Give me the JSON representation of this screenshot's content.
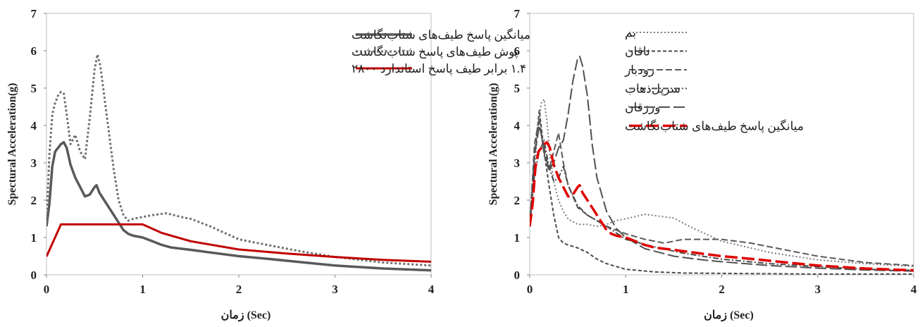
{
  "chart_data": [
    {
      "type": "line",
      "xlabel": "زمان (Sec)",
      "ylabel": "Spectural Acceleration(g)",
      "xlim": [
        0,
        4
      ],
      "ylim": [
        0,
        7
      ],
      "xticks": [
        0,
        1,
        2,
        3,
        4
      ],
      "yticks": [
        0,
        1,
        2,
        3,
        4,
        5,
        6,
        7
      ],
      "legend_position": "top-right",
      "series": [
        {
          "name": "میانگین پاسخ طیف‌های شتاب‌نگاشت",
          "color": "#595959",
          "dash": "",
          "width": 3.5,
          "x": [
            0,
            0.03,
            0.06,
            0.09,
            0.12,
            0.15,
            0.18,
            0.21,
            0.25,
            0.3,
            0.35,
            0.4,
            0.45,
            0.5,
            0.52,
            0.55,
            0.6,
            0.65,
            0.7,
            0.75,
            0.8,
            0.85,
            0.9,
            1.0,
            1.1,
            1.2,
            1.3,
            1.5,
            1.7,
            2.0,
            2.3,
            2.6,
            3.0,
            3.5,
            4.0
          ],
          "y": [
            1.3,
            1.9,
            2.9,
            3.3,
            3.4,
            3.5,
            3.55,
            3.4,
            2.95,
            2.6,
            2.35,
            2.1,
            2.15,
            2.35,
            2.4,
            2.2,
            2.0,
            1.8,
            1.6,
            1.4,
            1.2,
            1.1,
            1.05,
            1.0,
            0.9,
            0.8,
            0.73,
            0.67,
            0.6,
            0.5,
            0.43,
            0.35,
            0.25,
            0.17,
            0.12
          ]
        },
        {
          "name": "پوش طیف‌های پاسخ شتاب‌نگاشت",
          "color": "#707070",
          "dash": "3,3",
          "width": 3,
          "x": [
            0,
            0.03,
            0.06,
            0.09,
            0.12,
            0.15,
            0.18,
            0.21,
            0.25,
            0.3,
            0.35,
            0.4,
            0.45,
            0.5,
            0.53,
            0.56,
            0.6,
            0.65,
            0.7,
            0.75,
            0.8,
            0.85,
            0.9,
            1.0,
            1.1,
            1.25,
            1.4,
            1.5,
            1.7,
            2.0,
            2.3,
            2.6,
            3.0,
            3.5,
            4.0
          ],
          "y": [
            1.4,
            3.2,
            4.3,
            4.6,
            4.8,
            4.9,
            4.85,
            4.3,
            3.5,
            3.75,
            3.3,
            3.1,
            4.2,
            5.5,
            5.9,
            5.6,
            4.8,
            3.8,
            2.8,
            2.0,
            1.6,
            1.45,
            1.5,
            1.55,
            1.6,
            1.65,
            1.55,
            1.5,
            1.3,
            0.95,
            0.8,
            0.65,
            0.48,
            0.33,
            0.25
          ]
        },
        {
          "name": "۱.۴ برابر طیف پاسخ استاندارد ۲۸۰۰",
          "color": "#c00000",
          "dash": "",
          "width": 3,
          "x": [
            0,
            0.15,
            0.5,
            1.0,
            1.2,
            1.5,
            2.0,
            2.5,
            3.0,
            3.5,
            4.0
          ],
          "y": [
            0.49,
            1.35,
            1.35,
            1.35,
            1.12,
            0.9,
            0.68,
            0.57,
            0.48,
            0.4,
            0.35
          ]
        }
      ]
    },
    {
      "type": "line",
      "xlabel": "زمان (Sec)",
      "ylabel": "Spectural Acceleration(g)",
      "xlim": [
        0,
        4
      ],
      "ylim": [
        0,
        7
      ],
      "xticks": [
        0,
        1,
        2,
        3,
        4
      ],
      "yticks": [
        0,
        1,
        2,
        3,
        4,
        5,
        6,
        7
      ],
      "legend_position": "top-right",
      "series": [
        {
          "name": "بم",
          "color": "#7a7a7a",
          "dash": "2,3",
          "width": 2,
          "x": [
            0,
            0.04,
            0.08,
            0.12,
            0.15,
            0.18,
            0.21,
            0.25,
            0.3,
            0.35,
            0.4,
            0.5,
            0.6,
            0.7,
            0.8,
            0.9,
            1.0,
            1.2,
            1.5,
            1.7,
            2.0,
            2.5,
            3.0,
            3.5,
            4.0
          ],
          "y": [
            1.3,
            2.5,
            3.8,
            4.6,
            4.7,
            4.1,
            3.2,
            2.5,
            2.0,
            1.7,
            1.5,
            1.35,
            1.35,
            1.3,
            1.35,
            1.45,
            1.5,
            1.62,
            1.52,
            1.25,
            0.9,
            0.6,
            0.4,
            0.3,
            0.23
          ]
        },
        {
          "name": "ناقان",
          "color": "#4a4a4a",
          "dash": "5,3",
          "width": 2,
          "x": [
            0,
            0.05,
            0.1,
            0.15,
            0.2,
            0.25,
            0.3,
            0.35,
            0.4,
            0.5,
            0.6,
            0.7,
            0.8,
            1.0,
            1.3,
            1.6,
            2.0,
            2.5,
            3.0,
            3.5,
            4.0
          ],
          "y": [
            1.3,
            3.2,
            4.4,
            3.3,
            2.4,
            1.6,
            1.0,
            0.85,
            0.8,
            0.72,
            0.6,
            0.42,
            0.3,
            0.15,
            0.08,
            0.05,
            0.04,
            0.03,
            0.02,
            0.02,
            0.02
          ]
        },
        {
          "name": "رودبار",
          "color": "#5a5a5a",
          "dash": "9,4",
          "width": 2,
          "x": [
            0,
            0.05,
            0.1,
            0.15,
            0.2,
            0.25,
            0.3,
            0.35,
            0.4,
            0.5,
            0.6,
            0.8,
            1.0,
            1.2,
            1.4,
            1.6,
            1.8,
            2.0,
            2.3,
            2.6,
            3.0,
            3.5,
            4.0
          ],
          "y": [
            1.3,
            3.5,
            4.2,
            3.2,
            2.8,
            3.3,
            3.8,
            3.0,
            2.4,
            1.8,
            1.6,
            1.3,
            1.1,
            0.95,
            0.85,
            0.95,
            0.95,
            0.95,
            0.85,
            0.7,
            0.5,
            0.33,
            0.25
          ]
        },
        {
          "name": "سرپل‌ذهاب",
          "color": "#4a4a4a",
          "dash": "8,3,2,3",
          "width": 2,
          "x": [
            0,
            0.05,
            0.1,
            0.15,
            0.2,
            0.25,
            0.3,
            0.35,
            0.4,
            0.5,
            0.6,
            0.8,
            1.0,
            1.3,
            1.6,
            2.0,
            2.5,
            3.0,
            3.5,
            4.0
          ],
          "y": [
            1.3,
            2.7,
            3.3,
            3.6,
            2.9,
            2.5,
            2.6,
            2.9,
            2.4,
            1.85,
            1.6,
            1.3,
            0.95,
            0.75,
            0.58,
            0.42,
            0.3,
            0.22,
            0.15,
            0.12
          ]
        },
        {
          "name": "ورزقان",
          "color": "#505050",
          "dash": "16,5",
          "width": 2,
          "x": [
            0,
            0.05,
            0.1,
            0.15,
            0.2,
            0.25,
            0.3,
            0.35,
            0.4,
            0.45,
            0.5,
            0.52,
            0.55,
            0.6,
            0.65,
            0.7,
            0.8,
            0.9,
            1.0,
            1.2,
            1.5,
            1.8,
            2.0,
            2.5,
            3.0,
            3.5,
            4.0
          ],
          "y": [
            1.3,
            3.2,
            4.0,
            3.4,
            2.8,
            3.0,
            3.4,
            3.6,
            4.3,
            5.2,
            5.8,
            5.85,
            5.6,
            4.8,
            3.5,
            2.6,
            1.7,
            1.25,
            1.0,
            0.7,
            0.5,
            0.4,
            0.35,
            0.25,
            0.18,
            0.13,
            0.1
          ]
        },
        {
          "name": "میانگین پاسخ طیف‌های شتاب‌نگاشت",
          "color": "#e00000",
          "dash": "18,6",
          "width": 3.5,
          "x": [
            0,
            0.03,
            0.06,
            0.09,
            0.12,
            0.15,
            0.18,
            0.21,
            0.25,
            0.3,
            0.35,
            0.4,
            0.45,
            0.5,
            0.52,
            0.55,
            0.6,
            0.65,
            0.7,
            0.75,
            0.8,
            0.85,
            0.9,
            1.0,
            1.1,
            1.2,
            1.3,
            1.5,
            1.7,
            2.0,
            2.3,
            2.6,
            3.0,
            3.5,
            4.0
          ],
          "y": [
            1.3,
            1.9,
            2.9,
            3.3,
            3.4,
            3.5,
            3.55,
            3.4,
            2.95,
            2.6,
            2.35,
            2.1,
            2.15,
            2.35,
            2.4,
            2.2,
            2.0,
            1.8,
            1.6,
            1.4,
            1.2,
            1.1,
            1.05,
            1.0,
            0.9,
            0.8,
            0.73,
            0.67,
            0.6,
            0.5,
            0.43,
            0.35,
            0.25,
            0.17,
            0.12
          ]
        }
      ]
    }
  ]
}
